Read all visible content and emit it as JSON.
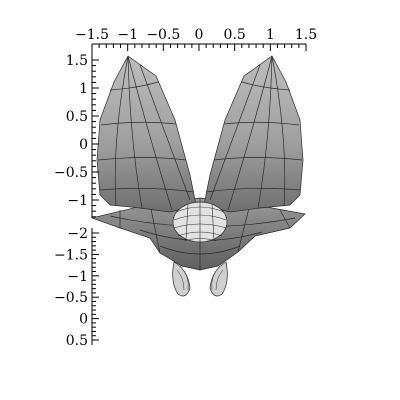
{
  "chart_data": {
    "type": "surface-3d",
    "title": "",
    "xlabel": "",
    "ylabel": "",
    "grid": false,
    "shading": "grayscale",
    "legend": "none",
    "top_axis": {
      "range": [
        -1.5,
        1.5
      ],
      "tick_labels": [
        "−1.5",
        "−1",
        "−0.5",
        "0",
        "0.5",
        "1",
        "1.5"
      ]
    },
    "left_axis_upper": {
      "range": [
        -1.3,
        1.5
      ],
      "tick_labels": [
        "1.5",
        "1",
        "0.5",
        "0",
        "−0.5",
        "−1"
      ]
    },
    "left_axis_lower": {
      "range": [
        -2,
        0.5
      ],
      "tick_labels": [
        "−2",
        "−1.5",
        "−1",
        "−0.5",
        "0",
        "0.5"
      ]
    }
  }
}
